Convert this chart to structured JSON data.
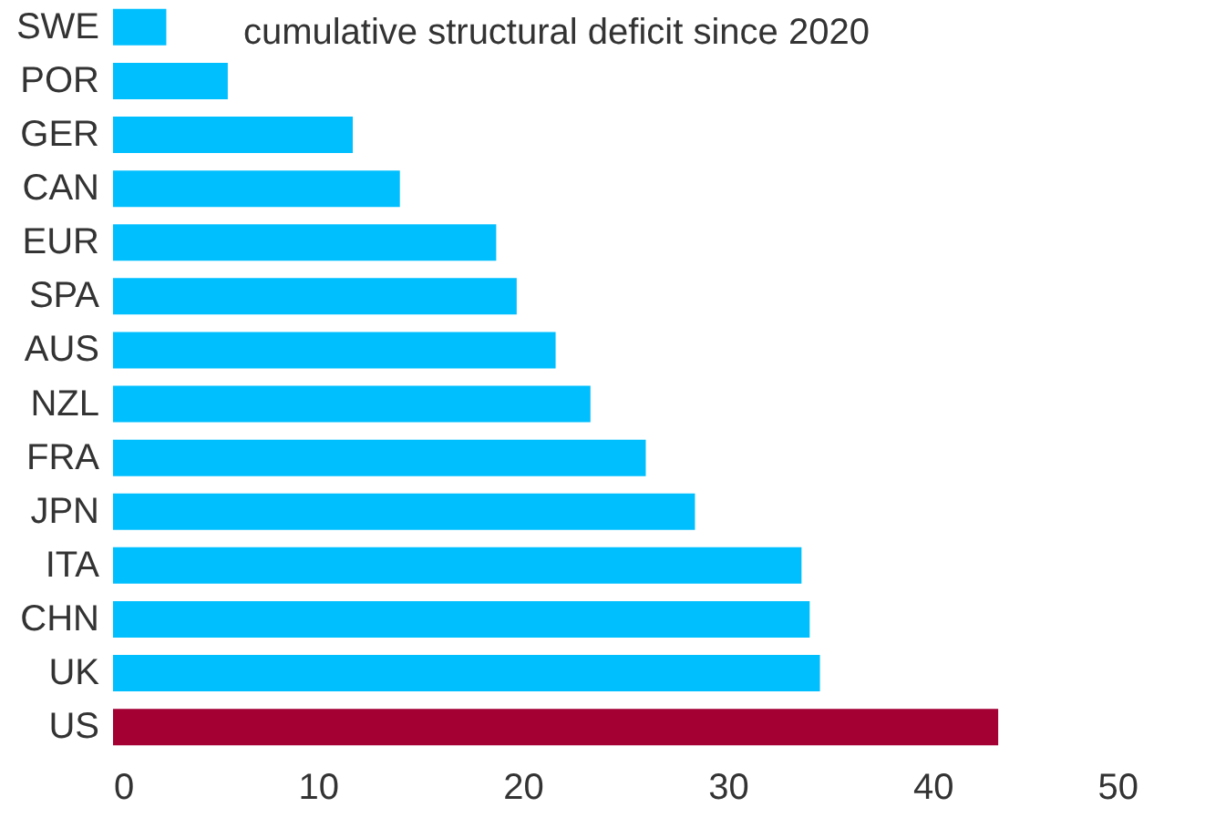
{
  "chart_data": {
    "type": "bar",
    "orientation": "horizontal",
    "title": "cumulative structural deficit since 2020",
    "categories": [
      "SWE",
      "POR",
      "GER",
      "CAN",
      "EUR",
      "SPA",
      "AUS",
      "NZL",
      "FRA",
      "JPN",
      "ITA",
      "CHN",
      "UK",
      "US"
    ],
    "values": [
      2.6,
      5.6,
      11.7,
      14.0,
      18.7,
      19.7,
      21.6,
      23.3,
      26.0,
      28.4,
      33.6,
      34.0,
      34.5,
      43.2
    ],
    "colors": [
      "#00bfff",
      "#00bfff",
      "#00bfff",
      "#00bfff",
      "#00bfff",
      "#00bfff",
      "#00bfff",
      "#00bfff",
      "#00bfff",
      "#00bfff",
      "#00bfff",
      "#00bfff",
      "#00bfff",
      "#a50034"
    ],
    "xlim": [
      0,
      50
    ],
    "xticks": [
      0,
      10,
      20,
      30,
      40,
      50
    ],
    "grid": false
  }
}
